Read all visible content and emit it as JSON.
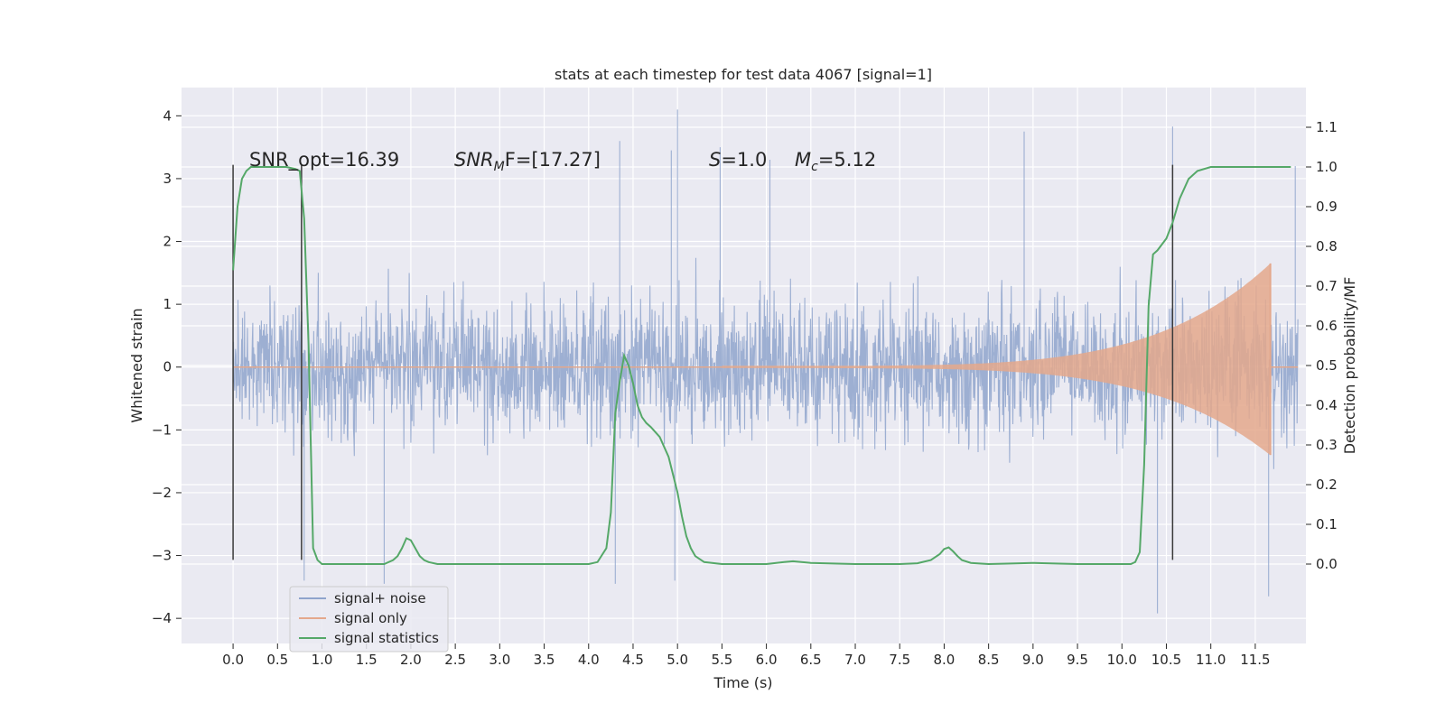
{
  "chart_data": {
    "type": "line",
    "title": "stats at each timestep for test data 4067 [signal=1]",
    "xlabel": "Time (s)",
    "ylabel_left": "Whitened strain",
    "ylabel_right": "Detection probability/MF",
    "xlim": [
      -0.58,
      12.07
    ],
    "ylim_left": [
      -4.4,
      4.45
    ],
    "ylim_right": [
      -0.2,
      1.2
    ],
    "grid": true,
    "legend_position": "lower-left",
    "x_ticks": [
      "0.0",
      "0.5",
      "1.0",
      "1.5",
      "2.0",
      "2.5",
      "3.0",
      "3.5",
      "4.0",
      "4.5",
      "5.0",
      "5.5",
      "6.0",
      "6.5",
      "7.0",
      "7.5",
      "8.0",
      "8.5",
      "9.0",
      "9.5",
      "10.0",
      "10.5",
      "11.0",
      "11.5"
    ],
    "y_ticks_left": [
      "4",
      "3",
      "2",
      "1",
      "0",
      "−1",
      "−2",
      "−3",
      "−4"
    ],
    "y_ticks_right": [
      "1.1",
      "1.0",
      "0.9",
      "0.8",
      "0.7",
      "0.6",
      "0.5",
      "0.4",
      "0.3",
      "0.2",
      "0.1",
      "0.0"
    ],
    "annotations": {
      "snr_opt": "SNR_opt=16.39",
      "snr_mf_base": "SNR",
      "snr_mf_sub": "M",
      "snr_mf_rest": "F=[17.27]",
      "s_base": "S",
      "s_rest": "=1.0",
      "mc_base": "M",
      "mc_sub": "c",
      "mc_rest": "=5.12"
    },
    "vertical_lines": [
      0.0,
      0.77,
      10.57
    ],
    "series": [
      {
        "name": "signal+ noise",
        "color": "#8fa4cc",
        "axis": "left",
        "t_range": [
          0.0,
          11.98
        ],
        "envelope_low": -2.0,
        "envelope_high": 2.0,
        "max": 4.1,
        "min": -3.95,
        "peaks": [
          {
            "x": 5.0,
            "y": 4.1
          },
          {
            "x": 10.57,
            "y": 3.83
          },
          {
            "x": 8.9,
            "y": 3.75
          },
          {
            "x": 4.35,
            "y": 3.6
          },
          {
            "x": 5.48,
            "y": 3.5
          },
          {
            "x": 4.93,
            "y": 3.45
          },
          {
            "x": 6.04,
            "y": 3.3
          },
          {
            "x": 11.95,
            "y": 3.2
          },
          {
            "x": 1.7,
            "y": -3.45
          },
          {
            "x": 10.4,
            "y": -3.92
          },
          {
            "x": 11.65,
            "y": -3.65
          },
          {
            "x": 0.8,
            "y": -3.4
          },
          {
            "x": 4.3,
            "y": -3.45
          },
          {
            "x": 4.97,
            "y": -3.4
          }
        ]
      },
      {
        "name": "signal only",
        "color": "#e4a88c",
        "axis": "left",
        "type": "chirp",
        "t_start": 5.5,
        "t_merger": 11.67,
        "t_end": 11.98,
        "amp_start": 0.02,
        "amp_peak": 1.65,
        "amp_min_trough": -1.4
      },
      {
        "name": "signal statistics",
        "color": "#55a868",
        "axis": "right",
        "x": [
          0.0,
          0.05,
          0.1,
          0.15,
          0.2,
          0.3,
          0.4,
          0.5,
          0.6,
          0.7,
          0.75,
          0.8,
          0.85,
          0.9,
          0.95,
          1.0,
          1.1,
          1.3,
          1.5,
          1.7,
          1.8,
          1.85,
          1.9,
          1.95,
          2.0,
          2.05,
          2.1,
          2.15,
          2.2,
          2.3,
          2.5,
          3.0,
          3.5,
          4.0,
          4.1,
          4.2,
          4.25,
          4.3,
          4.35,
          4.4,
          4.45,
          4.5,
          4.55,
          4.6,
          4.65,
          4.7,
          4.8,
          4.9,
          5.0,
          5.05,
          5.1,
          5.15,
          5.2,
          5.3,
          5.5,
          6.0,
          6.2,
          6.3,
          6.5,
          7.0,
          7.5,
          7.7,
          7.85,
          7.95,
          8.0,
          8.05,
          8.1,
          8.15,
          8.2,
          8.3,
          8.5,
          9.0,
          9.5,
          10.0,
          10.1,
          10.15,
          10.2,
          10.25,
          10.3,
          10.35,
          10.4,
          10.5,
          10.57,
          10.65,
          10.75,
          10.85,
          11.0,
          11.2,
          11.5,
          11.8,
          11.9
        ],
        "y": [
          0.74,
          0.9,
          0.97,
          0.99,
          1.0,
          1.0,
          1.0,
          1.0,
          1.0,
          0.995,
          0.99,
          0.87,
          0.55,
          0.04,
          0.01,
          0.0,
          0.0,
          0.0,
          0.0,
          0.0,
          0.01,
          0.02,
          0.04,
          0.065,
          0.06,
          0.04,
          0.02,
          0.01,
          0.005,
          0.0,
          0.0,
          0.0,
          0.0,
          0.0,
          0.005,
          0.04,
          0.13,
          0.38,
          0.46,
          0.525,
          0.5,
          0.455,
          0.4,
          0.37,
          0.355,
          0.345,
          0.32,
          0.27,
          0.18,
          0.12,
          0.07,
          0.04,
          0.02,
          0.005,
          0.0,
          0.0,
          0.005,
          0.007,
          0.003,
          0.0,
          0.0,
          0.002,
          0.01,
          0.025,
          0.038,
          0.042,
          0.032,
          0.02,
          0.01,
          0.003,
          0.0,
          0.003,
          0.0,
          0.0,
          0.0,
          0.005,
          0.03,
          0.25,
          0.65,
          0.78,
          0.79,
          0.82,
          0.86,
          0.92,
          0.97,
          0.99,
          1.0,
          1.0,
          1.0,
          1.0,
          1.0
        ]
      }
    ]
  }
}
